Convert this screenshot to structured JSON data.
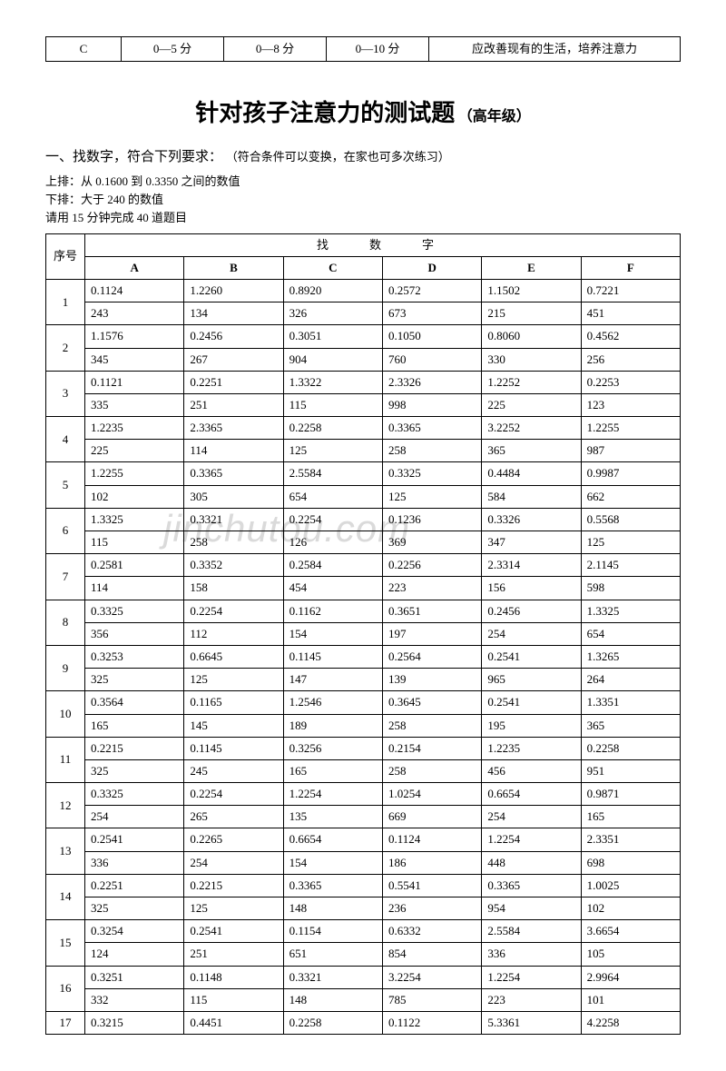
{
  "watermark": "jinchutou.com",
  "topTable": {
    "cells": [
      "C",
      "0—5 分",
      "0—8 分",
      "0—10 分",
      "应改善现有的生活，培养注意力"
    ]
  },
  "title": {
    "main": "针对孩子注意力的测试题",
    "sub": "（高年级）"
  },
  "section": {
    "heading": "一、找数字，符合下列要求：",
    "note": "（符合条件可以变换，在家也可多次练习）"
  },
  "instructions": {
    "line1": "上排：从 0.1600 到 0.3350 之间的数值",
    "line2": "下排：大于 240 的数值",
    "line3": "请用 15 分钟完成 40 道题目"
  },
  "dataTable": {
    "seqHeader": "序号",
    "mergedHeader": "找　数　字",
    "columns": [
      "A",
      "B",
      "C",
      "D",
      "E",
      "F"
    ],
    "rows": [
      {
        "seq": "1",
        "r1": [
          "0.1124",
          "1.2260",
          "0.8920",
          "0.2572",
          "1.1502",
          "0.7221"
        ],
        "r2": [
          "243",
          "134",
          "326",
          "673",
          "215",
          "451"
        ]
      },
      {
        "seq": "2",
        "r1": [
          "1.1576",
          "0.2456",
          "0.3051",
          "0.1050",
          "0.8060",
          "0.4562"
        ],
        "r2": [
          "345",
          "267",
          "904",
          "760",
          "330",
          "256"
        ]
      },
      {
        "seq": "3",
        "r1": [
          "0.1121",
          "0.2251",
          "1.3322",
          "2.3326",
          "1.2252",
          "0.2253"
        ],
        "r2": [
          "335",
          "251",
          "115",
          "998",
          "225",
          "123"
        ]
      },
      {
        "seq": "4",
        "r1": [
          "1.2235",
          "2.3365",
          "0.2258",
          "0.3365",
          "3.2252",
          "1.2255"
        ],
        "r2": [
          "225",
          "114",
          "125",
          "258",
          "365",
          "987"
        ]
      },
      {
        "seq": "5",
        "r1": [
          "1.2255",
          "0.3365",
          "2.5584",
          "0.3325",
          "0.4484",
          "0.9987"
        ],
        "r2": [
          "102",
          "305",
          "654",
          "125",
          "584",
          "662"
        ]
      },
      {
        "seq": "6",
        "r1": [
          "1.3325",
          "0.3321",
          "0.2254",
          "0.1236",
          "0.3326",
          "0.5568"
        ],
        "r2": [
          "115",
          "258",
          "126",
          "369",
          "347",
          "125"
        ]
      },
      {
        "seq": "7",
        "r1": [
          "0.2581",
          "0.3352",
          "0.2584",
          "0.2256",
          "2.3314",
          "2.1145"
        ],
        "r2": [
          "114",
          "158",
          "454",
          "223",
          "156",
          "598"
        ]
      },
      {
        "seq": "8",
        "r1": [
          "0.3325",
          "0.2254",
          "0.1162",
          "0.3651",
          "0.2456",
          "1.3325"
        ],
        "r2": [
          "356",
          "112",
          "154",
          "197",
          "254",
          "654"
        ]
      },
      {
        "seq": "9",
        "r1": [
          "0.3253",
          "0.6645",
          "0.1145",
          "0.2564",
          "0.2541",
          "1.3265"
        ],
        "r2": [
          "325",
          "125",
          "147",
          "139",
          "965",
          "264"
        ]
      },
      {
        "seq": "10",
        "r1": [
          "0.3564",
          "0.1165",
          "1.2546",
          "0.3645",
          "0.2541",
          "1.3351"
        ],
        "r2": [
          "165",
          "145",
          "189",
          "258",
          "195",
          "365"
        ]
      },
      {
        "seq": "11",
        "r1": [
          "0.2215",
          "0.1145",
          "0.3256",
          "0.2154",
          "1.2235",
          "0.2258"
        ],
        "r2": [
          "325",
          "245",
          "165",
          "258",
          "456",
          "951"
        ]
      },
      {
        "seq": "12",
        "r1": [
          "0.3325",
          "0.2254",
          "1.2254",
          "1.0254",
          "0.6654",
          "0.9871"
        ],
        "r2": [
          "254",
          "265",
          "135",
          "669",
          "254",
          "165"
        ]
      },
      {
        "seq": "13",
        "r1": [
          "0.2541",
          "0.2265",
          "0.6654",
          "0.1124",
          "1.2254",
          "2.3351"
        ],
        "r2": [
          "336",
          "254",
          "154",
          "186",
          "448",
          "698"
        ]
      },
      {
        "seq": "14",
        "r1": [
          "0.2251",
          "0.2215",
          "0.3365",
          "0.5541",
          "0.3365",
          "1.0025"
        ],
        "r2": [
          "325",
          "125",
          "148",
          "236",
          "954",
          "102"
        ]
      },
      {
        "seq": "15",
        "r1": [
          "0.3254",
          "0.2541",
          "0.1154",
          "0.6332",
          "2.5584",
          "3.6654"
        ],
        "r2": [
          "124",
          "251",
          "651",
          "854",
          "336",
          "105"
        ]
      },
      {
        "seq": "16",
        "r1": [
          "0.3251",
          "0.1148",
          "0.3321",
          "3.2254",
          "1.2254",
          "2.9964"
        ],
        "r2": [
          "332",
          "115",
          "148",
          "785",
          "223",
          "101"
        ]
      },
      {
        "seq": "17",
        "r1": [
          "0.3215",
          "0.4451",
          "0.2258",
          "0.1122",
          "5.3361",
          "4.2258"
        ]
      }
    ]
  }
}
